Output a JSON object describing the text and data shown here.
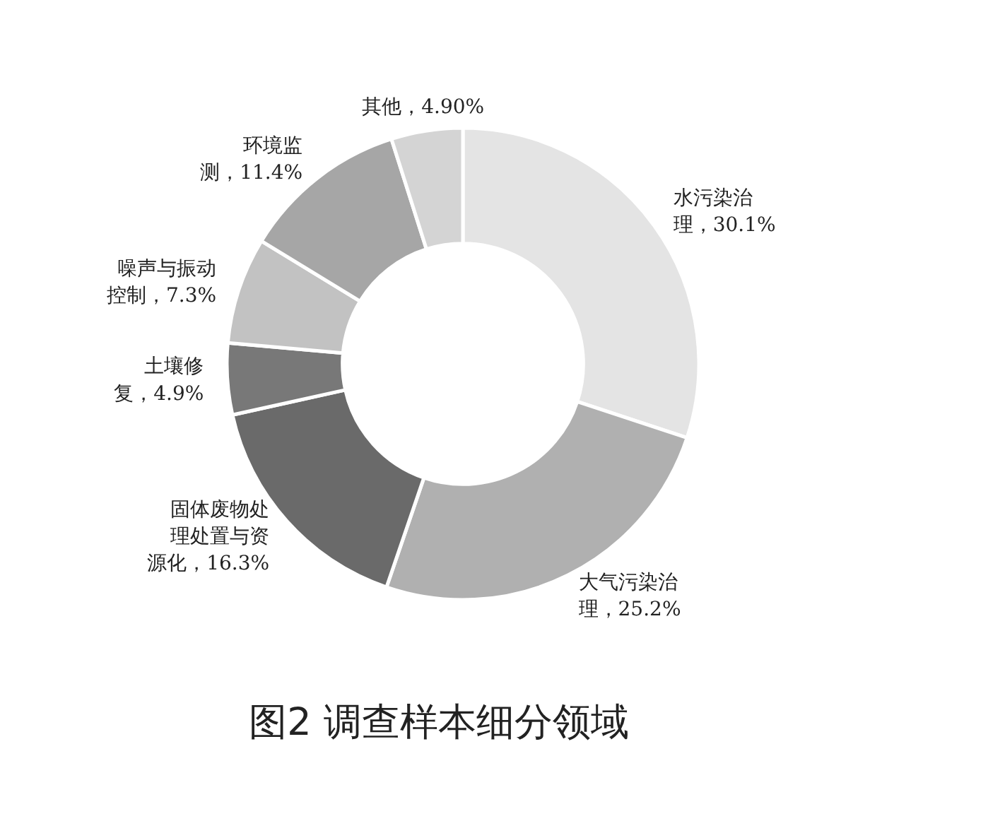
{
  "chart_data": {
    "type": "donut",
    "title": "图2 调查样本细分领域",
    "categories": [
      "水污染治理",
      "大气污染治理",
      "固体废物处理处置与资源化",
      "土壤修复",
      "噪声与振动控制",
      "环境监测",
      "其他"
    ],
    "values": [
      30.1,
      25.2,
      16.3,
      4.9,
      7.3,
      11.4,
      4.9
    ],
    "value_labels": [
      "30.1%",
      "25.2%",
      "16.3%",
      "4.9%",
      "7.3%",
      "11.4%",
      "4.90%"
    ],
    "colors": [
      "#e4e4e4",
      "#b0b0b0",
      "#6a6a6a",
      "#787878",
      "#c2c2c2",
      "#a6a6a6",
      "#d4d4d4"
    ]
  }
}
